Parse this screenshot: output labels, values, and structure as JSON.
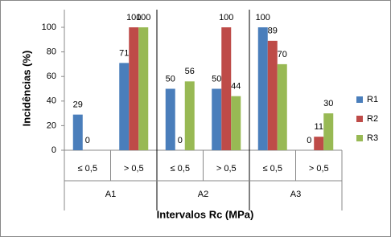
{
  "chart_data": {
    "type": "bar",
    "y_label": "Incidências (%)",
    "x_label": "Intervalos Rc (MPa)",
    "categories": [
      "≤ 0,5",
      "> 0,5",
      "≤ 0,5",
      "> 0,5",
      "≤ 0,5",
      "> 0,5"
    ],
    "groups": [
      "A1",
      "A2",
      "A3"
    ],
    "series": [
      {
        "name": "R1",
        "color": "#4a7ebb",
        "values": [
          29,
          71,
          50,
          50,
          100,
          0
        ]
      },
      {
        "name": "R2",
        "color": "#be4b48",
        "values": [
          0,
          100,
          0,
          100,
          89,
          11
        ]
      },
      {
        "name": "R3",
        "color": "#98b954",
        "values": [
          null,
          100,
          56,
          44,
          70,
          30
        ]
      }
    ],
    "ylim": [
      0,
      100
    ],
    "yticks": [
      0,
      20,
      40,
      60,
      80,
      100
    ],
    "grid": false,
    "legend": "right"
  }
}
